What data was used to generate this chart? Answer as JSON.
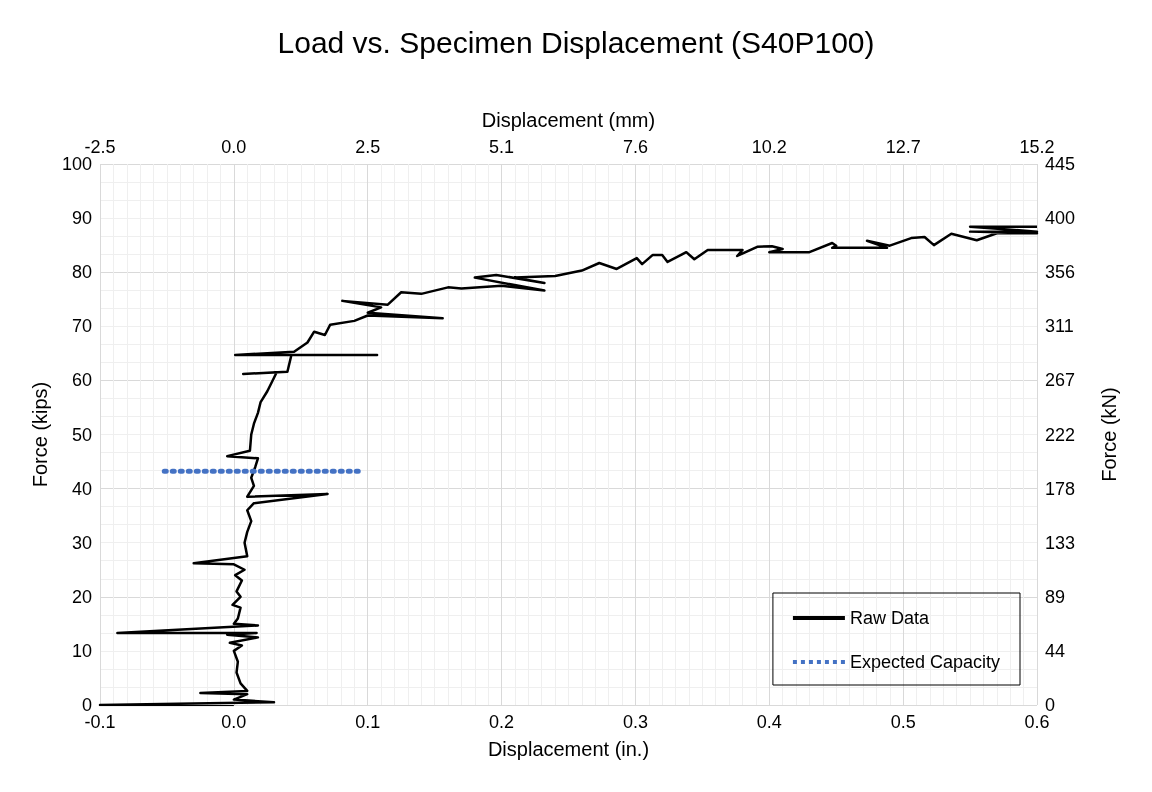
{
  "chart_data": {
    "type": "line",
    "title": "Load vs. Specimen Displacement (S40P100)",
    "xlabel": "Displacement (in.)",
    "ylabel": "Force (kips)",
    "x2label": "Displacement (mm)",
    "y2label": "Force (kN)",
    "xlim": [
      -0.1,
      0.6
    ],
    "xticks": [
      -0.1,
      {
        "value": 0,
        "label": "0.0"
      },
      0.1,
      0.2,
      0.3,
      0.4,
      0.5,
      0.6
    ],
    "ylim": [
      0,
      100
    ],
    "yticks": [
      0,
      10,
      20,
      30,
      40,
      50,
      60,
      70,
      80,
      90,
      100
    ],
    "x2lim": [
      -2.54,
      15.24
    ],
    "x2ticks": [
      {
        "value": -2.54,
        "label": "-2.5"
      },
      {
        "value": 0,
        "label": "0.0"
      },
      {
        "value": 2.54,
        "label": "2.5"
      },
      {
        "value": 5.08,
        "label": "5.1"
      },
      {
        "value": 7.62,
        "label": "7.6"
      },
      {
        "value": 10.16,
        "label": "10.2"
      },
      {
        "value": 12.7,
        "label": "12.7"
      },
      {
        "value": 15.24,
        "label": "15.2"
      }
    ],
    "y2lim": [
      0,
      444.8
    ],
    "y2ticks": [
      0,
      {
        "value": 44.48,
        "label": "44"
      },
      {
        "value": 88.96,
        "label": "89"
      },
      {
        "value": 133.44,
        "label": "133"
      },
      {
        "value": 177.92,
        "label": "178"
      },
      {
        "value": 222.4,
        "label": "222"
      },
      {
        "value": 266.88,
        "label": "267"
      },
      {
        "value": 311.36,
        "label": "311"
      },
      {
        "value": 355.84,
        "label": "356"
      },
      {
        "value": 400.32,
        "label": "400"
      },
      {
        "value": 444.8,
        "label": "445"
      }
    ],
    "grid": true,
    "legend": "bottom right",
    "series": [
      {
        "name": "Raw Data",
        "color": "#000000",
        "line_style": "solid",
        "x": [
          0,
          -0.1,
          0.03,
          0.0,
          0.01,
          -0.025,
          0.01,
          0.005,
          0.002,
          0.003,
          0.0,
          0.006,
          -0.003,
          0.018,
          -0.005,
          0.017,
          -0.087,
          0.018,
          0.0,
          0.003,
          0.005,
          -0.001,
          0.005,
          0.002,
          0.006,
          0.001,
          0.008,
          0.0,
          -0.03,
          0.01,
          0.008,
          0.01,
          0.013,
          0.01,
          0.015,
          0.07,
          0.01,
          0.015,
          0.013,
          0.016,
          0.018,
          -0.005,
          0.012,
          0.013,
          0.015,
          0.018,
          0.02,
          0.025,
          0.03,
          0.032,
          0.007,
          0.04,
          0.043,
          0.107,
          0.001,
          0.045,
          0.055,
          0.06,
          0.068,
          0.072,
          0.09,
          0.1,
          0.156,
          0.1,
          0.11,
          0.081,
          0.115,
          0.125,
          0.14,
          0.16,
          0.17,
          0.2,
          0.232,
          0.18,
          0.196,
          0.232,
          0.21,
          0.24,
          0.26,
          0.273,
          0.286,
          0.301,
          0.305,
          0.313,
          0.32,
          0.324,
          0.338,
          0.344,
          0.354,
          0.38,
          0.376,
          0.391,
          0.402,
          0.41,
          0.4,
          0.43,
          0.447,
          0.45,
          0.447,
          0.488,
          0.473,
          0.49,
          0.506,
          0.516,
          0.523,
          0.536,
          0.555,
          0.57,
          0.6,
          0.55,
          0.6,
          0.55,
          0.6
        ],
        "values": [
          0,
          0,
          0.5,
          1,
          2,
          2.2,
          2.6,
          4,
          6,
          8,
          10,
          11,
          11.5,
          12.5,
          13,
          13.3,
          13.3,
          14.7,
          15,
          16,
          18,
          18.5,
          20,
          21,
          23,
          24,
          25,
          26,
          26.2,
          27.5,
          30,
          32,
          34,
          36,
          37.3,
          39,
          38.5,
          40.5,
          42,
          44,
          45.6,
          46,
          47,
          50,
          52,
          54,
          56,
          58,
          60.5,
          61.5,
          61.2,
          61.6,
          64.7,
          64.7,
          64.7,
          65.3,
          67,
          69,
          68.4,
          70.3,
          71,
          72,
          71.5,
          72.5,
          73.5,
          74.7,
          74,
          76.3,
          76,
          77.2,
          77,
          77.5,
          76.6,
          79,
          79.5,
          78,
          79,
          79.3,
          80.3,
          81.7,
          80.6,
          82.6,
          81.5,
          83.2,
          83.2,
          81.9,
          83.7,
          82.4,
          84.1,
          84.1,
          83,
          84.7,
          84.8,
          84.3,
          83.7,
          83.7,
          85.4,
          84.9,
          84.5,
          84.5,
          85.8,
          84.9,
          86.3,
          86.5,
          85,
          87.1,
          85.9,
          87.2,
          87.2,
          87.5,
          87.5,
          88.4,
          88.4
        ]
      },
      {
        "name": "Expected Capacity",
        "color": "#4472c4",
        "line_style": "dotted",
        "x": [
          -0.052,
          0.094
        ],
        "values": [
          43.2,
          43.2
        ]
      }
    ]
  }
}
